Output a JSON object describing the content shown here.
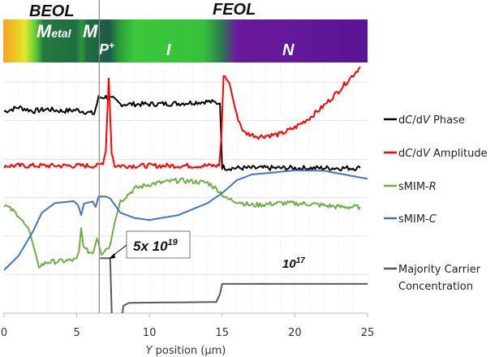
{
  "chart_data": {
    "type": "line",
    "title": "",
    "xlabel_italic": "Y",
    "xlabel_rest": " position (μm)",
    "ylabel": "",
    "xlim": [
      0,
      25
    ],
    "ylim": [
      0,
      6.45
    ],
    "x_ticks": [
      "0",
      "5",
      "10",
      "15",
      "20",
      "25"
    ],
    "grid": true,
    "legend_position": "right",
    "region_labels": {
      "beol": "BEOL",
      "feol": "FEOL",
      "metal_big": "M",
      "metal_small": "etal",
      "m": "M",
      "p": "P",
      "p_sup": "+",
      "i": "I",
      "n": "N"
    },
    "annotations": {
      "high_base": "5x 10",
      "high_exp": "19",
      "low_base": "10",
      "low_exp": "17"
    },
    "marker_line_x": 6.55,
    "series": [
      {
        "name": "dC/dV Phase",
        "legend_pre": "d",
        "legend_c": "C",
        "legend_mid": "/d",
        "legend_v": "V",
        "legend_post": " Phase",
        "color": "#000000",
        "noisy": true,
        "points": [
          [
            0,
            5.24
          ],
          [
            1,
            5.35
          ],
          [
            2,
            5.25
          ],
          [
            3,
            5.3
          ],
          [
            4,
            5.25
          ],
          [
            5,
            5.28
          ],
          [
            6.2,
            5.18
          ],
          [
            6.5,
            5.6
          ],
          [
            7,
            5.62
          ],
          [
            7.5,
            5.56
          ],
          [
            8,
            5.43
          ],
          [
            10,
            5.43
          ],
          [
            12,
            5.45
          ],
          [
            14,
            5.5
          ],
          [
            14.85,
            5.45
          ],
          [
            15.0,
            3.8
          ],
          [
            15.3,
            3.77
          ],
          [
            20,
            3.77
          ],
          [
            24.5,
            3.77
          ]
        ]
      },
      {
        "name": "dC/dV Amplitude",
        "legend_pre": "d",
        "legend_c": "C",
        "legend_mid": "/d",
        "legend_v": "V",
        "legend_post": " Amplitude",
        "color": "#ff0000",
        "noisy": true,
        "points": [
          [
            0,
            3.83
          ],
          [
            6.5,
            3.83
          ],
          [
            6.8,
            3.92
          ],
          [
            7.0,
            4.2
          ],
          [
            7.2,
            6.1
          ],
          [
            7.4,
            4.2
          ],
          [
            7.6,
            3.83
          ],
          [
            14.8,
            3.83
          ],
          [
            14.95,
            4.6
          ],
          [
            15.1,
            6.19
          ],
          [
            15.5,
            5.98
          ],
          [
            16,
            5.14
          ],
          [
            16.5,
            4.69
          ],
          [
            17.5,
            4.59
          ],
          [
            19,
            4.65
          ],
          [
            20,
            4.82
          ],
          [
            21,
            5.07
          ],
          [
            22,
            5.39
          ],
          [
            23,
            5.77
          ],
          [
            24,
            6.19
          ],
          [
            24.5,
            6.4
          ]
        ]
      },
      {
        "name": "sMIM-R",
        "legend_pre": "sMIM-",
        "legend_c": "R",
        "color": "#70ad47",
        "noisy": true,
        "points": [
          [
            0,
            2.82
          ],
          [
            1,
            2.55
          ],
          [
            1.8,
            2.06
          ],
          [
            2.4,
            1.22
          ],
          [
            3,
            1.33
          ],
          [
            4,
            1.35
          ],
          [
            5,
            1.39
          ],
          [
            5.15,
            1.6
          ],
          [
            5.3,
            2.19
          ],
          [
            5.45,
            1.8
          ],
          [
            5.6,
            1.64
          ],
          [
            6.1,
            1.56
          ],
          [
            6.4,
            1.98
          ],
          [
            6.7,
            1.56
          ],
          [
            7.3,
            1.77
          ],
          [
            7.6,
            2.34
          ],
          [
            8,
            2.91
          ],
          [
            9,
            3.24
          ],
          [
            10,
            3.35
          ],
          [
            12,
            3.45
          ],
          [
            14,
            3.39
          ],
          [
            14.8,
            3.18
          ],
          [
            15.3,
            2.97
          ],
          [
            16,
            2.91
          ],
          [
            17,
            2.8
          ],
          [
            19,
            2.86
          ],
          [
            21,
            2.84
          ],
          [
            23,
            2.76
          ],
          [
            24.5,
            2.76
          ]
        ]
      },
      {
        "name": "sMIM-C",
        "legend_pre": "sMIM-",
        "legend_c": "C",
        "color": "#4472c4",
        "noisy": false,
        "points": [
          [
            0,
            1.12
          ],
          [
            1,
            1.49
          ],
          [
            2,
            2.13
          ],
          [
            2.6,
            2.61
          ],
          [
            3.5,
            2.86
          ],
          [
            4.8,
            2.91
          ],
          [
            5.1,
            2.8
          ],
          [
            5.3,
            2.55
          ],
          [
            5.5,
            2.85
          ],
          [
            6.1,
            2.9
          ],
          [
            6.3,
            2.76
          ],
          [
            6.5,
            3.03
          ],
          [
            7.0,
            3.03
          ],
          [
            7.3,
            2.98
          ],
          [
            8,
            2.61
          ],
          [
            9,
            2.47
          ],
          [
            10,
            2.42
          ],
          [
            12,
            2.55
          ],
          [
            14,
            2.86
          ],
          [
            15,
            3.12
          ],
          [
            16,
            3.45
          ],
          [
            17,
            3.6
          ],
          [
            20,
            3.71
          ],
          [
            22,
            3.7
          ],
          [
            24,
            3.56
          ],
          [
            25,
            3.49
          ]
        ]
      },
      {
        "name": "Majority Carrier Concentration",
        "legend_line1": "Majority Carrier",
        "legend_line2": "Concentration",
        "color": "#595959",
        "noisy": false,
        "points": [
          [
            6.6,
            1.43
          ],
          [
            7.3,
            1.43
          ],
          [
            7.45,
            -0.6
          ],
          [
            8.0,
            -0.6
          ],
          [
            8.2,
            0.19
          ],
          [
            8.6,
            0.27
          ],
          [
            14.6,
            0.29
          ],
          [
            14.85,
            0.5
          ],
          [
            15.0,
            0.76
          ],
          [
            25,
            0.76
          ]
        ]
      }
    ]
  }
}
